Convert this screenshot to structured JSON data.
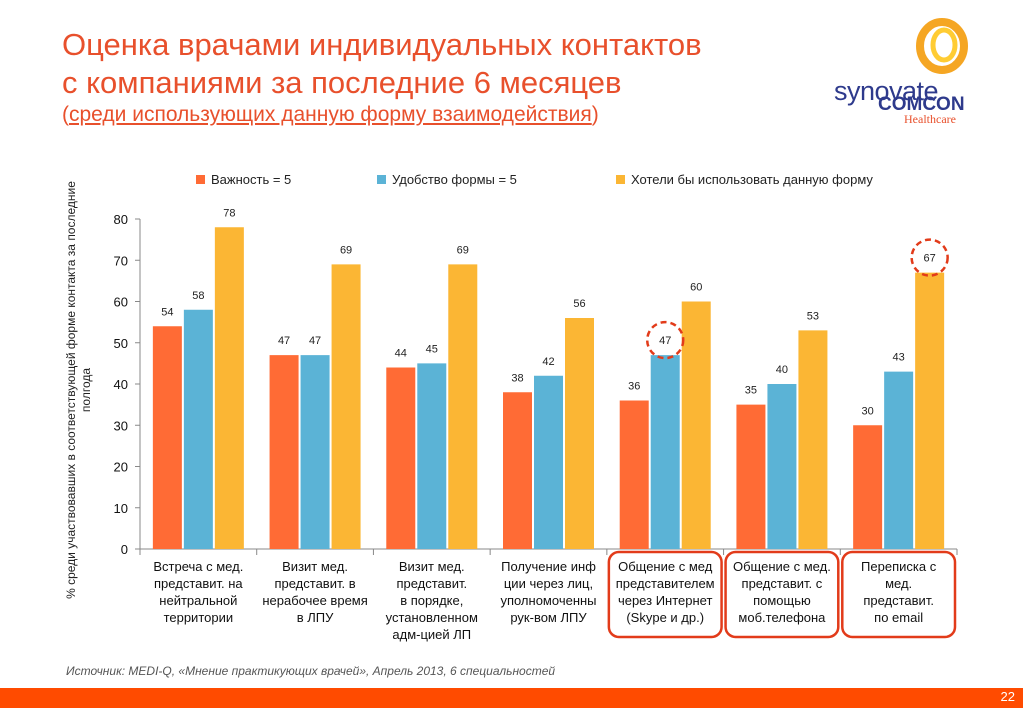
{
  "header": {
    "title_line1": "Оценка врачами индивидуальных контактов",
    "title_line2": "с компаниями за последние 6 месяцев",
    "subtitle_open": "(",
    "subtitle_text": "среди использующих данную форму взаимодействия",
    "subtitle_close": ")"
  },
  "logo": {
    "brand": "synovate",
    "sub": "COMCON",
    "division": "Healthcare"
  },
  "colors": {
    "accent": "#e8502c",
    "series1": "#ff6b35",
    "series2": "#5bb3d6",
    "series3": "#fbb634",
    "highlight": "#e23b1a",
    "footer_bar": "#ff4b00"
  },
  "chart_data": {
    "type": "bar",
    "ylabel": "% среди участвовавших в соответствующей форме контакта за последние полгода",
    "ylim": [
      0,
      80
    ],
    "yticks": [
      0,
      10,
      20,
      30,
      40,
      50,
      60,
      70,
      80
    ],
    "categories": [
      [
        "Встреча с мед.",
        "представит. на",
        "нейтральной",
        "территории"
      ],
      [
        "Визит мед.",
        "представит. в",
        "нерабочее время",
        "в ЛПУ"
      ],
      [
        "Визит мед.",
        "представит.",
        "в порядке,",
        "установленном",
        "адм-цией ЛП"
      ],
      [
        "Получение инф",
        "ции через лиц,",
        "уполномоченны",
        "рук-вом ЛПУ"
      ],
      [
        "Общение с мед",
        "представителем",
        "через Интернет",
        "(Skype и др.)"
      ],
      [
        "Общение с мед.",
        "представит. с",
        "помощью",
        "моб.телефона"
      ],
      [
        "Переписка с",
        "мед.",
        "представит.",
        "по email"
      ]
    ],
    "series": [
      {
        "name": "Важность = 5",
        "values": [
          54,
          47,
          44,
          38,
          36,
          35,
          30
        ]
      },
      {
        "name": "Удобство формы = 5",
        "values": [
          58,
          47,
          45,
          42,
          47,
          40,
          43
        ]
      },
      {
        "name": "Хотели бы использовать данную форму",
        "values": [
          78,
          69,
          69,
          56,
          60,
          53,
          67
        ]
      }
    ],
    "highlighted_categories": [
      4,
      5,
      6
    ],
    "circled_points": [
      {
        "category": 4,
        "series": 1
      },
      {
        "category": 6,
        "series": 2
      }
    ],
    "legend_position": "top",
    "grid": false
  },
  "footer": {
    "source": "Источник:    MEDI-Q, «Мнение практикующих врачей», Апрель 2013, 6 специальностей",
    "page": "22"
  }
}
